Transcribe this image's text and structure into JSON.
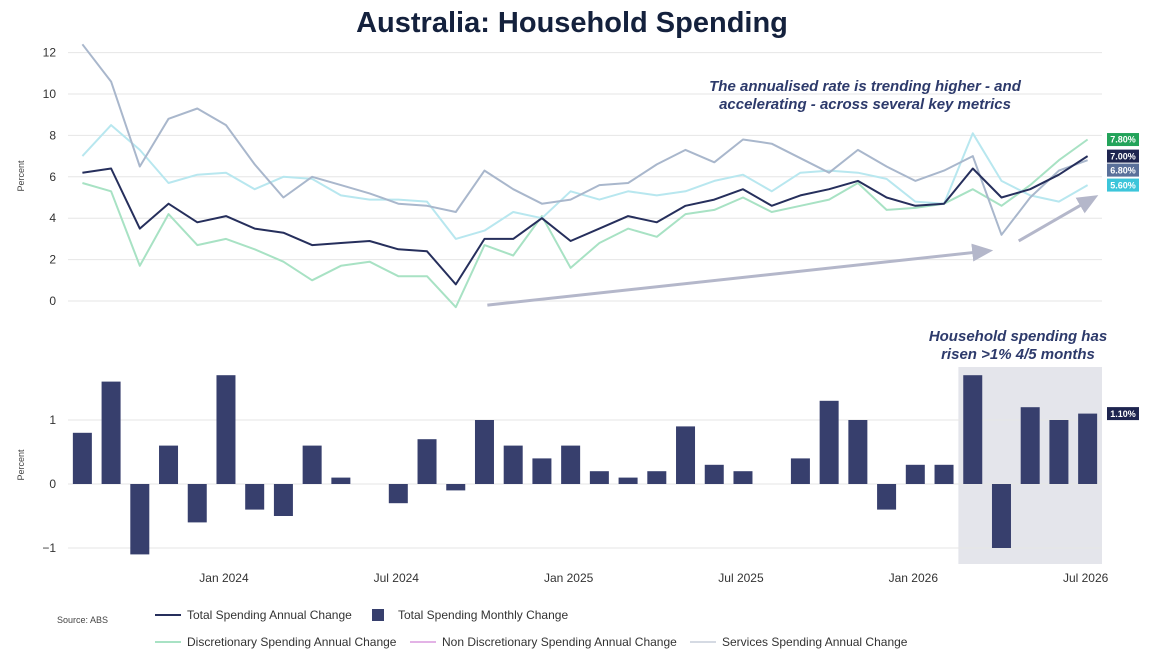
{
  "title": "Australia: Household Spending",
  "source": "Source: ABS",
  "annotations": {
    "top_line1": "The annualised rate is trending higher - and",
    "top_line2": "accelerating - across several key metrics",
    "bottom_line1": "Household spending has",
    "bottom_line2": "risen >1% 4/5 months"
  },
  "colors": {
    "total": "#262f5c",
    "discretionary": "#a8e2c4",
    "non_discretionary": "#b8e7ef",
    "services": "#a9b7cc",
    "monthly": "#373f6d",
    "shade": "#e4e5eb",
    "arrow": "#b4b7ca",
    "badge_total": "#1e2550",
    "badge_discretionary": "#23a35a",
    "badge_services": "#5a709a",
    "badge_non_discretionary": "#3cc5da",
    "badge_monthly": "#1e2550"
  },
  "chart_data": [
    {
      "type": "line",
      "ylabel": "Percent",
      "ylim": [
        -0.5,
        13
      ],
      "yticks": [
        "0",
        "2",
        "4",
        "6",
        "8",
        "10",
        "12"
      ],
      "x": [
        "2023-08",
        "2023-09",
        "2023-10",
        "2023-11",
        "2023-12",
        "2024-01",
        "2024-02",
        "2024-03",
        "2024-04",
        "2024-05",
        "2024-06",
        "2024-07",
        "2024-08",
        "2024-09",
        "2024-10",
        "2024-11",
        "2024-12",
        "2025-01",
        "2025-02",
        "2025-03",
        "2025-04",
        "2025-05",
        "2025-06",
        "2025-07",
        "2025-08",
        "2025-09",
        "2025-10",
        "2025-11",
        "2025-12",
        "2026-01",
        "2026-02",
        "2026-03",
        "2026-04",
        "2026-05",
        "2026-06",
        "2026-07"
      ],
      "xtick_labels": [
        "Jan 2024",
        "Jul 2024",
        "Jan 2025",
        "Jul 2025",
        "Jan 2026",
        "Jul 2026"
      ],
      "series": [
        {
          "name": "Total Spending Annual Change",
          "key": "total",
          "end_label": "7.00%",
          "values": [
            6.2,
            6.4,
            3.5,
            4.7,
            3.8,
            4.1,
            3.5,
            3.3,
            2.7,
            2.8,
            2.9,
            2.5,
            2.4,
            0.8,
            3.0,
            3.0,
            4.0,
            2.9,
            3.5,
            4.1,
            3.8,
            4.6,
            4.9,
            5.4,
            4.6,
            5.1,
            5.4,
            5.8,
            5.0,
            4.6,
            4.7,
            6.4,
            5.0,
            5.4,
            6.1,
            7.0
          ]
        },
        {
          "name": "Discretionary Spending Annual Change",
          "key": "discretionary",
          "end_label": "7.80%",
          "values": [
            5.7,
            5.3,
            1.7,
            4.2,
            2.7,
            3.0,
            2.5,
            1.9,
            1.0,
            1.7,
            1.9,
            1.2,
            1.2,
            -0.3,
            2.7,
            2.2,
            4.1,
            1.6,
            2.8,
            3.5,
            3.1,
            4.2,
            4.4,
            5.0,
            4.3,
            4.6,
            4.9,
            5.7,
            4.4,
            4.5,
            4.7,
            5.4,
            4.6,
            5.6,
            6.8,
            7.8
          ]
        },
        {
          "name": "Non Discretionary Spending Annual Change",
          "key": "non_discretionary",
          "end_label": "5.60%",
          "values": [
            7.0,
            8.5,
            7.3,
            5.7,
            6.1,
            6.2,
            5.4,
            6.0,
            5.9,
            5.1,
            4.9,
            4.9,
            4.8,
            3.0,
            3.4,
            4.3,
            4.0,
            5.3,
            4.9,
            5.3,
            5.1,
            5.3,
            5.8,
            6.1,
            5.3,
            6.2,
            6.3,
            6.2,
            5.9,
            4.8,
            4.7,
            8.1,
            5.8,
            5.1,
            4.8,
            5.6
          ]
        },
        {
          "name": "Services Spending Annual Change",
          "key": "services",
          "end_label": "6.80%",
          "values": [
            12.4,
            10.6,
            6.5,
            8.8,
            9.3,
            8.5,
            6.6,
            5.0,
            6.0,
            5.6,
            5.2,
            4.7,
            4.6,
            4.3,
            6.3,
            5.4,
            4.7,
            4.9,
            5.6,
            5.7,
            6.6,
            7.3,
            6.7,
            7.8,
            7.6,
            6.9,
            6.2,
            7.3,
            6.5,
            5.8,
            6.3,
            7.0,
            3.2,
            5.0,
            6.3,
            6.8
          ]
        }
      ]
    },
    {
      "type": "bar",
      "ylabel": "Percent",
      "ylim": [
        -1.1,
        1.9
      ],
      "yticks": [
        "−1",
        "0",
        "1"
      ],
      "series": [
        {
          "name": "Total Spending Monthly Change",
          "key": "monthly",
          "end_label": "1.10%",
          "values": [
            0.8,
            1.6,
            -1.1,
            0.6,
            -0.6,
            1.7,
            -0.4,
            -0.5,
            0.6,
            0.1,
            0.0,
            -0.3,
            0.7,
            -0.1,
            1.0,
            0.6,
            0.4,
            0.6,
            0.2,
            0.1,
            0.2,
            0.9,
            0.3,
            0.2,
            0.0,
            0.4,
            1.3,
            1.0,
            -0.4,
            0.3,
            0.3,
            1.7,
            -1.0,
            1.2,
            1.0,
            1.1
          ]
        }
      ]
    }
  ],
  "legend": {
    "row1": [
      {
        "label": "Total Spending Annual Change",
        "key": "total",
        "kind": "line"
      },
      {
        "label": "Total Spending Monthly Change",
        "key": "monthly",
        "kind": "square"
      }
    ],
    "row2": [
      {
        "label": "Discretionary Spending Annual Change",
        "key": "discretionary",
        "kind": "line"
      },
      {
        "label": "Non Discretionary Spending Annual Change",
        "key": "non_discretionary",
        "kind": "line_pink"
      },
      {
        "label": "Services Spending Annual Change",
        "key": "services",
        "kind": "line_grey"
      }
    ]
  }
}
